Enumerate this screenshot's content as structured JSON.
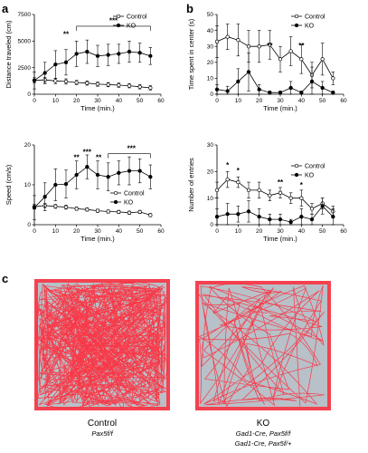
{
  "panel_labels": {
    "a": "a",
    "b": "b",
    "c": "c"
  },
  "colors": {
    "trace": "#ff2a3a",
    "arena_bg": "#b8c0c8",
    "line": "#000000"
  },
  "arena_labels": {
    "control_title": "Control",
    "control_genotype": "Pax5f/f",
    "ko_title": "KO",
    "ko_genotype_1": "Gad1-Cre, Pax5f/f",
    "ko_genotype_2": "Gad1-Cre, Pax5f/+"
  },
  "chart_data": [
    {
      "id": "distance",
      "type": "line",
      "ylabel": "Distance traveled (cm)",
      "xlabel": "Time (min.)",
      "xlim": [
        0,
        60
      ],
      "ylim": [
        0,
        7500
      ],
      "xticks": [
        0,
        10,
        20,
        30,
        40,
        50,
        60
      ],
      "yticks": [
        0,
        2500,
        5000,
        7500
      ],
      "legend_position": "top-right",
      "x": [
        0,
        5,
        10,
        15,
        20,
        25,
        30,
        35,
        40,
        45,
        50,
        55
      ],
      "series": [
        {
          "name": "Control",
          "marker": "open",
          "values": [
            1300,
            1350,
            1250,
            1200,
            1100,
            1050,
            950,
            900,
            850,
            800,
            700,
            600
          ],
          "errors": [
            250,
            250,
            250,
            250,
            200,
            200,
            200,
            200,
            200,
            200,
            200,
            200
          ]
        },
        {
          "name": "KO",
          "marker": "filled",
          "values": [
            1300,
            2000,
            2800,
            3000,
            3800,
            4000,
            3600,
            3700,
            3800,
            4000,
            3900,
            3600
          ],
          "errors": [
            800,
            1000,
            1300,
            1200,
            1200,
            1100,
            1000,
            1000,
            900,
            1000,
            900,
            800
          ]
        }
      ],
      "annotations": [
        {
          "text": "**",
          "x": 15,
          "y": 5400
        },
        {
          "text": "***",
          "x": 37.5,
          "y": 6700
        }
      ],
      "bracket": {
        "x1": 20,
        "x2": 55,
        "y": 6400
      }
    },
    {
      "id": "center",
      "type": "line",
      "ylabel": "Time spent in center (s)",
      "xlabel": "Time (min.)",
      "xlim": [
        0,
        60
      ],
      "ylim": [
        0,
        50
      ],
      "xticks": [
        0,
        10,
        20,
        30,
        40,
        50,
        60
      ],
      "yticks": [
        0,
        10,
        20,
        30,
        40,
        50
      ],
      "legend_position": "top-right",
      "x": [
        0,
        5,
        10,
        15,
        20,
        25,
        30,
        35,
        40,
        45,
        50,
        55
      ],
      "series": [
        {
          "name": "Control",
          "marker": "open",
          "values": [
            33,
            36,
            34,
            30,
            30,
            31,
            22,
            27,
            22,
            12,
            22,
            10
          ],
          "errors": [
            10,
            8,
            10,
            10,
            10,
            9,
            8,
            9,
            9,
            8,
            10,
            4
          ]
        },
        {
          "name": "KO",
          "marker": "filled",
          "values": [
            3,
            2,
            8,
            14,
            3,
            1,
            1,
            4,
            1,
            8,
            4,
            1
          ],
          "errors": [
            3,
            3,
            8,
            12,
            3,
            1,
            1,
            4,
            1,
            9,
            4,
            1
          ]
        }
      ],
      "annotations": [
        {
          "text": "**",
          "x": 25,
          "y": 29
        },
        {
          "text": "**",
          "x": 40,
          "y": 29
        }
      ]
    },
    {
      "id": "speed",
      "type": "line",
      "ylabel": "Speed (cm/s)",
      "xlabel": "Time (min.)",
      "xlim": [
        0,
        60
      ],
      "ylim": [
        0,
        20
      ],
      "xticks": [
        0,
        10,
        20,
        30,
        40,
        50,
        60
      ],
      "yticks": [
        0,
        10,
        20
      ],
      "legend_position": "center-right",
      "x": [
        0,
        5,
        10,
        15,
        20,
        25,
        30,
        35,
        40,
        45,
        50,
        55
      ],
      "series": [
        {
          "name": "Control",
          "marker": "open",
          "values": [
            4.5,
            4.8,
            4.6,
            4.4,
            4.0,
            3.8,
            3.5,
            3.3,
            3.2,
            3.0,
            3.2,
            2.4
          ],
          "errors": [
            0.6,
            0.5,
            0.5,
            0.5,
            0.4,
            0.4,
            0.4,
            0.4,
            0.4,
            0.4,
            0.4,
            0.4
          ]
        },
        {
          "name": "KO",
          "marker": "filled",
          "values": [
            4.3,
            7.0,
            10.0,
            10.2,
            12.5,
            14.5,
            12.5,
            12.0,
            13.0,
            13.5,
            13.5,
            12.0
          ],
          "errors": [
            3,
            3.5,
            4,
            3.5,
            3.5,
            3,
            3.5,
            3.5,
            3,
            3.5,
            3,
            3
          ]
        }
      ],
      "annotations": [
        {
          "text": "**",
          "x": 20,
          "y": 16.2
        },
        {
          "text": "***",
          "x": 25,
          "y": 17.6
        },
        {
          "text": "**",
          "x": 30.5,
          "y": 16.2
        },
        {
          "text": "***",
          "x": 46,
          "y": 18.5
        }
      ],
      "bracket": {
        "x1": 35,
        "x2": 55,
        "y": 17.8
      }
    },
    {
      "id": "entries",
      "type": "line",
      "ylabel": "Number of entries",
      "xlabel": "Time (min.)",
      "xlim": [
        0,
        60
      ],
      "ylim": [
        0,
        30
      ],
      "xticks": [
        0,
        10,
        20,
        30,
        40,
        50,
        60
      ],
      "yticks": [
        0,
        10,
        20,
        30
      ],
      "legend_position": "top-right",
      "x": [
        0,
        5,
        10,
        15,
        20,
        25,
        30,
        35,
        40,
        45,
        50,
        55
      ],
      "series": [
        {
          "name": "Control",
          "marker": "open",
          "values": [
            13,
            17,
            16,
            13,
            13,
            11,
            12,
            10,
            10,
            6,
            8,
            5
          ],
          "errors": [
            3,
            3,
            2,
            3,
            3,
            2,
            2,
            2,
            3,
            2,
            2,
            2
          ]
        },
        {
          "name": "KO",
          "marker": "filled",
          "values": [
            3,
            4,
            4,
            5,
            3,
            2,
            2,
            1,
            3,
            2,
            7,
            3
          ],
          "errors": [
            3,
            4,
            3,
            4,
            3,
            2,
            2,
            1,
            3,
            2,
            3,
            3
          ]
        }
      ],
      "annotations": [
        {
          "text": "*",
          "x": 5,
          "y": 21.5
        },
        {
          "text": "*",
          "x": 10,
          "y": 19.5
        },
        {
          "text": "**",
          "x": 30,
          "y": 15
        },
        {
          "text": "*",
          "x": 40,
          "y": 14
        }
      ]
    }
  ]
}
